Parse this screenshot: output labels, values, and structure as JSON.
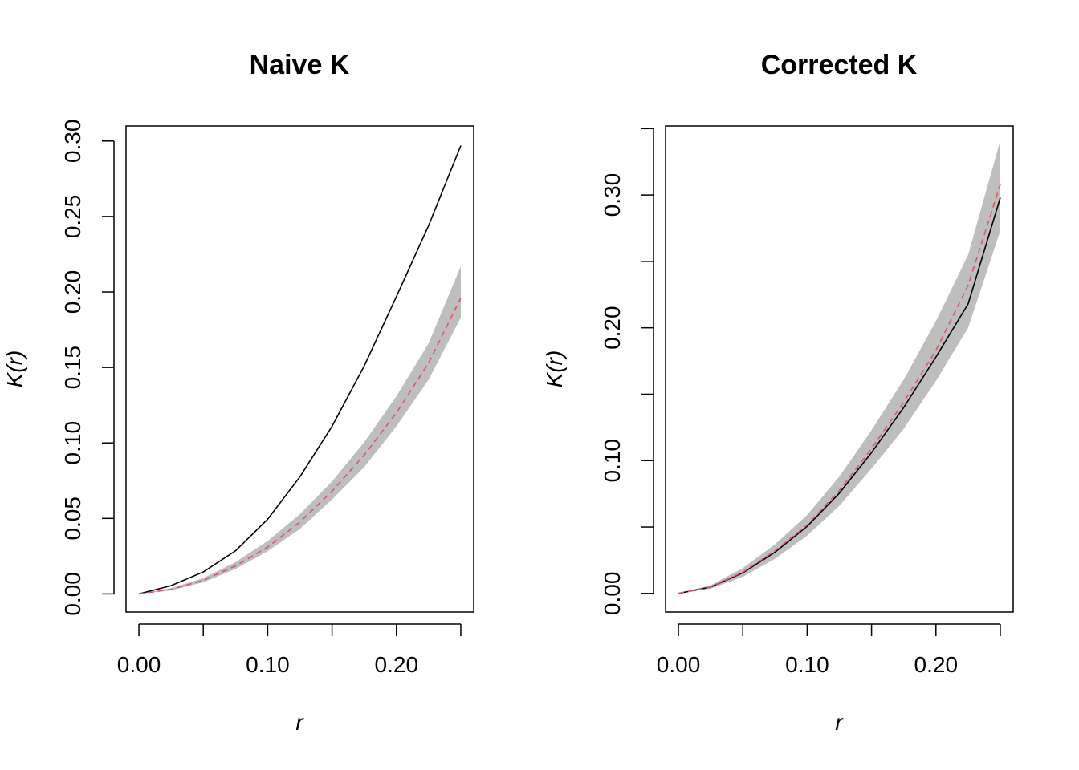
{
  "chart_data": [
    {
      "type": "line",
      "title": "Naive K",
      "xlabel": "r",
      "ylabel": "K(r)",
      "xlim": [
        -0.01,
        0.26
      ],
      "ylim": [
        -0.012,
        0.31
      ],
      "xticks": [
        0.0,
        0.05,
        0.1,
        0.15,
        0.2,
        0.25
      ],
      "xtick_labels": [
        "0.00",
        "",
        "0.10",
        "",
        "0.20",
        ""
      ],
      "yticks": [
        0.0,
        0.05,
        0.1,
        0.15,
        0.2,
        0.25,
        0.3
      ],
      "ytick_labels": [
        "0.00",
        "0.05",
        "0.10",
        "0.15",
        "0.20",
        "0.25",
        "0.30"
      ],
      "grid": false,
      "x": [
        0.0,
        0.025,
        0.05,
        0.075,
        0.1,
        0.125,
        0.15,
        0.175,
        0.2,
        0.225,
        0.25
      ],
      "series": [
        {
          "name": "",
          "style": "solid",
          "color": "#000000",
          "values": [
            0.0,
            0.0055,
            0.0145,
            0.0285,
            0.0495,
            0.0775,
            0.111,
            0.151,
            0.197,
            0.244,
            0.297
          ]
        },
        {
          "name": "",
          "style": "dashed",
          "color": "#df536b",
          "values": [
            0.0,
            0.003,
            0.009,
            0.0185,
            0.031,
            0.0475,
            0.068,
            0.092,
            0.12,
            0.153,
            0.196
          ]
        }
      ],
      "envelope": {
        "color": "#bebebe",
        "lower": [
          0.0,
          0.0023,
          0.0077,
          0.0165,
          0.0282,
          0.043,
          0.0625,
          0.084,
          0.111,
          0.142,
          0.183
        ],
        "upper": [
          0.0,
          0.0038,
          0.0105,
          0.021,
          0.035,
          0.0528,
          0.0745,
          0.1005,
          0.131,
          0.166,
          0.217
        ]
      }
    },
    {
      "type": "line",
      "title": "Corrected K",
      "xlabel": "r",
      "ylabel": "K(r)",
      "xlim": [
        -0.01,
        0.26
      ],
      "ylim": [
        -0.014,
        0.352
      ],
      "xticks": [
        0.0,
        0.05,
        0.1,
        0.15,
        0.2,
        0.25
      ],
      "xtick_labels": [
        "0.00",
        "",
        "0.10",
        "",
        "0.20",
        ""
      ],
      "yticks": [
        0.0,
        0.05,
        0.1,
        0.15,
        0.2,
        0.25,
        0.3,
        0.35
      ],
      "ytick_labels": [
        "0.00",
        "",
        "0.10",
        "",
        "0.20",
        "",
        "0.30",
        ""
      ],
      "grid": false,
      "x": [
        0.0,
        0.025,
        0.05,
        0.075,
        0.1,
        0.125,
        0.15,
        0.175,
        0.2,
        0.225,
        0.25
      ],
      "series": [
        {
          "name": "",
          "style": "solid",
          "color": "#000000",
          "values": [
            0.0,
            0.0048,
            0.0155,
            0.031,
            0.0505,
            0.0755,
            0.106,
            0.14,
            0.178,
            0.218,
            0.298
          ]
        },
        {
          "name": "",
          "style": "dashed",
          "color": "#df536b",
          "values": [
            0.0,
            0.0049,
            0.016,
            0.032,
            0.0515,
            0.0775,
            0.109,
            0.144,
            0.183,
            0.232,
            0.308
          ]
        }
      ],
      "envelope": {
        "color": "#bebebe",
        "lower": [
          0.0,
          0.0035,
          0.0125,
          0.026,
          0.0435,
          0.066,
          0.094,
          0.124,
          0.16,
          0.2,
          0.273
        ]
      },
      "envelope_upper": [
        0.0,
        0.0062,
        0.019,
        0.037,
        0.059,
        0.088,
        0.123,
        0.161,
        0.205,
        0.255,
        0.341
      ]
    }
  ]
}
